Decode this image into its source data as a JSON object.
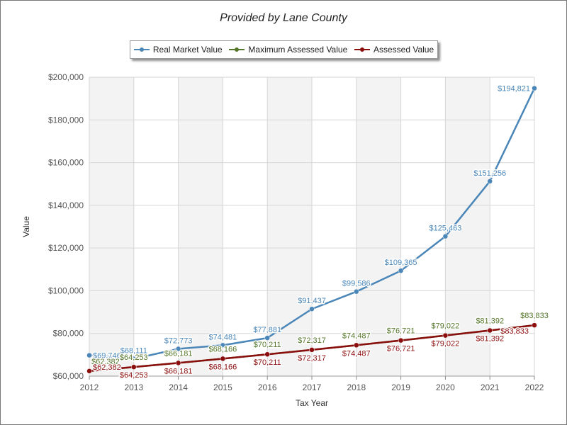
{
  "chart_data": {
    "type": "line",
    "title": "Provided by Lane County",
    "xlabel": "Tax Year",
    "ylabel": "Value",
    "x": [
      "2012",
      "2013",
      "2014",
      "2015",
      "2016",
      "2017",
      "2018",
      "2019",
      "2020",
      "2021",
      "2022"
    ],
    "ylim": [
      60000,
      200000
    ],
    "yticks": [
      60000,
      80000,
      100000,
      120000,
      140000,
      160000,
      180000,
      200000
    ],
    "ytick_labels": [
      "$60,000",
      "$80,000",
      "$100,000",
      "$120,000",
      "$140,000",
      "$160,000",
      "$180,000",
      "$200,000"
    ],
    "grid": true,
    "legend": "top-center",
    "series": [
      {
        "name": "Real Market Value",
        "color": "#4a86b8",
        "values": [
          69746,
          68111,
          72773,
          74481,
          77881,
          91437,
          99586,
          109365,
          125463,
          151256,
          194821
        ],
        "labels": [
          "$69,746",
          "$68,111",
          "$72,773",
          "$74,481",
          "$77,881",
          "$91,437",
          "$99,586",
          "$109,365",
          "$125,463",
          "$151,256",
          "$194,821"
        ]
      },
      {
        "name": "Maximum Assessed Value",
        "color": "#55772b",
        "values": [
          62382,
          64253,
          66181,
          68166,
          70211,
          72317,
          74487,
          76721,
          79022,
          81392,
          83833
        ],
        "labels": [
          "$62,382",
          "$64,253",
          "$66,181",
          "$68,166",
          "$70,211",
          "$72,317",
          "$74,487",
          "$76,721",
          "$79,022",
          "$81,392",
          "$83,833"
        ]
      },
      {
        "name": "Assessed Value",
        "color": "#8b0e0e",
        "values": [
          62382,
          64253,
          66181,
          68166,
          70211,
          72317,
          74487,
          76721,
          79022,
          81392,
          83833
        ],
        "labels": [
          "$62,382",
          "$64,253",
          "$66,181",
          "$68,166",
          "$70,211",
          "$72,317",
          "$74,487",
          "$76,721",
          "$79,022",
          "$81,392",
          "$83,833"
        ]
      }
    ]
  }
}
